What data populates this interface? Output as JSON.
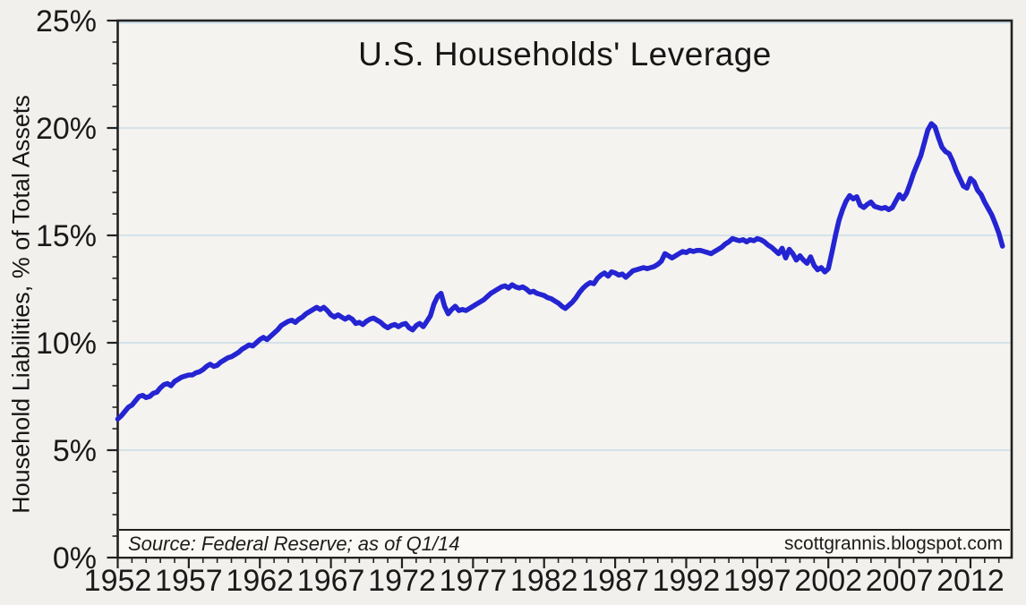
{
  "header": {
    "title": "U.S. Households' Leverage"
  },
  "annotations": {
    "source_note": "Source: Federal Reserve; as of Q1/14",
    "watermark": "scottgrannis.blogspot.com"
  },
  "colors": {
    "page_bg": "#f2f0ed",
    "plot_bg": "#f5f3ef",
    "band_bg": "#fbf9f5",
    "gridline": "#c9dee8",
    "axis": "#222222",
    "line": "#2424d2",
    "text": "#1a1a1a"
  },
  "chart_data": {
    "type": "line",
    "title": "U.S. Households' Leverage",
    "xlabel": "",
    "ylabel": "Household Liabilities, % of Total Assets",
    "x_range": [
      1952,
      2014.9
    ],
    "ylim": [
      0,
      25
    ],
    "grid": "horizontal-major",
    "legend": "none",
    "y_major_step": 5,
    "y_minor_step": 1,
    "x_major_step": 5,
    "x_minor_step": 1,
    "y_ticks": [
      [
        0,
        "0%"
      ],
      [
        5,
        "5%"
      ],
      [
        10,
        "10%"
      ],
      [
        15,
        "15%"
      ],
      [
        20,
        "20%"
      ],
      [
        25,
        "25%"
      ]
    ],
    "x_ticks": [
      [
        1952,
        "1952"
      ],
      [
        1957,
        "1957"
      ],
      [
        1962,
        "1962"
      ],
      [
        1967,
        "1967"
      ],
      [
        1972,
        "1972"
      ],
      [
        1977,
        "1977"
      ],
      [
        1982,
        "1982"
      ],
      [
        1987,
        "1987"
      ],
      [
        1992,
        "1992"
      ],
      [
        1997,
        "1997"
      ],
      [
        2002,
        "2002"
      ],
      [
        2007,
        "2007"
      ],
      [
        2012,
        "2012"
      ]
    ],
    "x_minor_tick_range": [
      1952,
      2014
    ],
    "series": [
      {
        "name": "Household liabilities as % of total assets",
        "color": "#2424d2",
        "points": [
          [
            1952.0,
            6.45
          ],
          [
            1952.25,
            6.6
          ],
          [
            1952.5,
            6.8
          ],
          [
            1952.75,
            7.0
          ],
          [
            1953.0,
            7.1
          ],
          [
            1953.25,
            7.3
          ],
          [
            1953.5,
            7.5
          ],
          [
            1953.75,
            7.55
          ],
          [
            1954.0,
            7.45
          ],
          [
            1954.25,
            7.5
          ],
          [
            1954.5,
            7.65
          ],
          [
            1954.75,
            7.7
          ],
          [
            1955.0,
            7.9
          ],
          [
            1955.25,
            8.05
          ],
          [
            1955.5,
            8.1
          ],
          [
            1955.75,
            8.0
          ],
          [
            1956.0,
            8.2
          ],
          [
            1956.25,
            8.3
          ],
          [
            1956.5,
            8.4
          ],
          [
            1956.75,
            8.45
          ],
          [
            1957.0,
            8.5
          ],
          [
            1957.25,
            8.5
          ],
          [
            1957.5,
            8.6
          ],
          [
            1957.75,
            8.65
          ],
          [
            1958.0,
            8.75
          ],
          [
            1958.25,
            8.9
          ],
          [
            1958.5,
            9.0
          ],
          [
            1958.75,
            8.9
          ],
          [
            1959.0,
            8.95
          ],
          [
            1959.25,
            9.1
          ],
          [
            1959.5,
            9.2
          ],
          [
            1959.75,
            9.3
          ],
          [
            1960.0,
            9.35
          ],
          [
            1960.25,
            9.45
          ],
          [
            1960.5,
            9.55
          ],
          [
            1960.75,
            9.7
          ],
          [
            1961.0,
            9.8
          ],
          [
            1961.25,
            9.9
          ],
          [
            1961.5,
            9.85
          ],
          [
            1961.75,
            10.0
          ],
          [
            1962.0,
            10.15
          ],
          [
            1962.25,
            10.25
          ],
          [
            1962.5,
            10.15
          ],
          [
            1962.75,
            10.3
          ],
          [
            1963.0,
            10.45
          ],
          [
            1963.25,
            10.6
          ],
          [
            1963.5,
            10.8
          ],
          [
            1963.75,
            10.9
          ],
          [
            1964.0,
            11.0
          ],
          [
            1964.25,
            11.05
          ],
          [
            1964.5,
            10.95
          ],
          [
            1964.75,
            11.1
          ],
          [
            1965.0,
            11.2
          ],
          [
            1965.25,
            11.35
          ],
          [
            1965.5,
            11.45
          ],
          [
            1965.75,
            11.55
          ],
          [
            1966.0,
            11.65
          ],
          [
            1966.25,
            11.55
          ],
          [
            1966.5,
            11.65
          ],
          [
            1966.75,
            11.5
          ],
          [
            1967.0,
            11.3
          ],
          [
            1967.25,
            11.2
          ],
          [
            1967.5,
            11.3
          ],
          [
            1967.75,
            11.2
          ],
          [
            1968.0,
            11.1
          ],
          [
            1968.25,
            11.2
          ],
          [
            1968.5,
            11.1
          ],
          [
            1968.75,
            10.9
          ],
          [
            1969.0,
            10.95
          ],
          [
            1969.25,
            10.85
          ],
          [
            1969.5,
            11.0
          ],
          [
            1969.75,
            11.1
          ],
          [
            1970.0,
            11.15
          ],
          [
            1970.25,
            11.05
          ],
          [
            1970.5,
            10.95
          ],
          [
            1970.75,
            10.8
          ],
          [
            1971.0,
            10.7
          ],
          [
            1971.25,
            10.8
          ],
          [
            1971.5,
            10.85
          ],
          [
            1971.75,
            10.75
          ],
          [
            1972.0,
            10.85
          ],
          [
            1972.25,
            10.9
          ],
          [
            1972.5,
            10.7
          ],
          [
            1972.75,
            10.6
          ],
          [
            1973.0,
            10.8
          ],
          [
            1973.25,
            10.9
          ],
          [
            1973.5,
            10.75
          ],
          [
            1973.75,
            11.0
          ],
          [
            1974.0,
            11.25
          ],
          [
            1974.25,
            11.8
          ],
          [
            1974.5,
            12.15
          ],
          [
            1974.75,
            12.3
          ],
          [
            1975.0,
            11.7
          ],
          [
            1975.25,
            11.35
          ],
          [
            1975.5,
            11.55
          ],
          [
            1975.75,
            11.7
          ],
          [
            1976.0,
            11.5
          ],
          [
            1976.25,
            11.55
          ],
          [
            1976.5,
            11.5
          ],
          [
            1976.75,
            11.6
          ],
          [
            1977.0,
            11.7
          ],
          [
            1977.25,
            11.8
          ],
          [
            1977.5,
            11.9
          ],
          [
            1977.75,
            12.0
          ],
          [
            1978.0,
            12.15
          ],
          [
            1978.25,
            12.3
          ],
          [
            1978.5,
            12.4
          ],
          [
            1978.75,
            12.5
          ],
          [
            1979.0,
            12.6
          ],
          [
            1979.25,
            12.65
          ],
          [
            1979.5,
            12.55
          ],
          [
            1979.75,
            12.7
          ],
          [
            1980.0,
            12.6
          ],
          [
            1980.25,
            12.55
          ],
          [
            1980.5,
            12.6
          ],
          [
            1980.75,
            12.5
          ],
          [
            1981.0,
            12.35
          ],
          [
            1981.25,
            12.4
          ],
          [
            1981.5,
            12.3
          ],
          [
            1981.75,
            12.25
          ],
          [
            1982.0,
            12.2
          ],
          [
            1982.25,
            12.1
          ],
          [
            1982.5,
            12.05
          ],
          [
            1982.75,
            11.95
          ],
          [
            1983.0,
            11.85
          ],
          [
            1983.25,
            11.7
          ],
          [
            1983.5,
            11.6
          ],
          [
            1983.75,
            11.75
          ],
          [
            1984.0,
            11.9
          ],
          [
            1984.25,
            12.1
          ],
          [
            1984.5,
            12.35
          ],
          [
            1984.75,
            12.55
          ],
          [
            1985.0,
            12.7
          ],
          [
            1985.25,
            12.8
          ],
          [
            1985.5,
            12.75
          ],
          [
            1985.75,
            13.0
          ],
          [
            1986.0,
            13.15
          ],
          [
            1986.25,
            13.25
          ],
          [
            1986.5,
            13.1
          ],
          [
            1986.75,
            13.3
          ],
          [
            1987.0,
            13.25
          ],
          [
            1987.25,
            13.15
          ],
          [
            1987.5,
            13.2
          ],
          [
            1987.75,
            13.05
          ],
          [
            1988.0,
            13.2
          ],
          [
            1988.25,
            13.35
          ],
          [
            1988.5,
            13.4
          ],
          [
            1988.75,
            13.45
          ],
          [
            1989.0,
            13.5
          ],
          [
            1989.25,
            13.45
          ],
          [
            1989.5,
            13.5
          ],
          [
            1989.75,
            13.55
          ],
          [
            1990.0,
            13.65
          ],
          [
            1990.25,
            13.8
          ],
          [
            1990.5,
            14.15
          ],
          [
            1990.75,
            14.05
          ],
          [
            1991.0,
            13.95
          ],
          [
            1991.25,
            14.05
          ],
          [
            1991.5,
            14.15
          ],
          [
            1991.75,
            14.25
          ],
          [
            1992.0,
            14.2
          ],
          [
            1992.25,
            14.3
          ],
          [
            1992.5,
            14.25
          ],
          [
            1992.75,
            14.3
          ],
          [
            1993.0,
            14.3
          ],
          [
            1993.25,
            14.25
          ],
          [
            1993.5,
            14.2
          ],
          [
            1993.75,
            14.15
          ],
          [
            1994.0,
            14.25
          ],
          [
            1994.25,
            14.35
          ],
          [
            1994.5,
            14.45
          ],
          [
            1994.75,
            14.6
          ],
          [
            1995.0,
            14.7
          ],
          [
            1995.25,
            14.85
          ],
          [
            1995.5,
            14.8
          ],
          [
            1995.75,
            14.75
          ],
          [
            1996.0,
            14.8
          ],
          [
            1996.25,
            14.7
          ],
          [
            1996.5,
            14.8
          ],
          [
            1996.75,
            14.75
          ],
          [
            1997.0,
            14.85
          ],
          [
            1997.25,
            14.8
          ],
          [
            1997.5,
            14.7
          ],
          [
            1997.75,
            14.55
          ],
          [
            1998.0,
            14.45
          ],
          [
            1998.25,
            14.3
          ],
          [
            1998.5,
            14.15
          ],
          [
            1998.75,
            14.4
          ],
          [
            1999.0,
            13.95
          ],
          [
            1999.25,
            14.35
          ],
          [
            1999.5,
            14.15
          ],
          [
            1999.75,
            13.85
          ],
          [
            2000.0,
            14.05
          ],
          [
            2000.25,
            13.85
          ],
          [
            2000.5,
            13.7
          ],
          [
            2000.75,
            14.0
          ],
          [
            2001.0,
            13.6
          ],
          [
            2001.25,
            13.4
          ],
          [
            2001.5,
            13.5
          ],
          [
            2001.75,
            13.3
          ],
          [
            2002.0,
            13.45
          ],
          [
            2002.25,
            14.2
          ],
          [
            2002.5,
            15.0
          ],
          [
            2002.75,
            15.7
          ],
          [
            2003.0,
            16.2
          ],
          [
            2003.25,
            16.6
          ],
          [
            2003.5,
            16.85
          ],
          [
            2003.75,
            16.7
          ],
          [
            2004.0,
            16.8
          ],
          [
            2004.25,
            16.4
          ],
          [
            2004.5,
            16.3
          ],
          [
            2004.75,
            16.45
          ],
          [
            2005.0,
            16.55
          ],
          [
            2005.25,
            16.35
          ],
          [
            2005.5,
            16.3
          ],
          [
            2005.75,
            16.25
          ],
          [
            2006.0,
            16.3
          ],
          [
            2006.25,
            16.2
          ],
          [
            2006.5,
            16.3
          ],
          [
            2006.75,
            16.6
          ],
          [
            2007.0,
            16.9
          ],
          [
            2007.25,
            16.7
          ],
          [
            2007.5,
            16.95
          ],
          [
            2007.75,
            17.4
          ],
          [
            2008.0,
            17.9
          ],
          [
            2008.25,
            18.3
          ],
          [
            2008.5,
            18.7
          ],
          [
            2008.75,
            19.3
          ],
          [
            2009.0,
            19.9
          ],
          [
            2009.25,
            20.2
          ],
          [
            2009.5,
            20.05
          ],
          [
            2009.75,
            19.55
          ],
          [
            2010.0,
            19.1
          ],
          [
            2010.25,
            18.9
          ],
          [
            2010.5,
            18.8
          ],
          [
            2010.75,
            18.45
          ],
          [
            2011.0,
            18.0
          ],
          [
            2011.25,
            17.65
          ],
          [
            2011.5,
            17.3
          ],
          [
            2011.75,
            17.2
          ],
          [
            2012.0,
            17.65
          ],
          [
            2012.25,
            17.5
          ],
          [
            2012.5,
            17.1
          ],
          [
            2012.75,
            16.9
          ],
          [
            2013.0,
            16.55
          ],
          [
            2013.25,
            16.25
          ],
          [
            2013.5,
            15.95
          ],
          [
            2013.75,
            15.55
          ],
          [
            2014.0,
            15.1
          ],
          [
            2014.25,
            14.5
          ]
        ]
      }
    ]
  }
}
